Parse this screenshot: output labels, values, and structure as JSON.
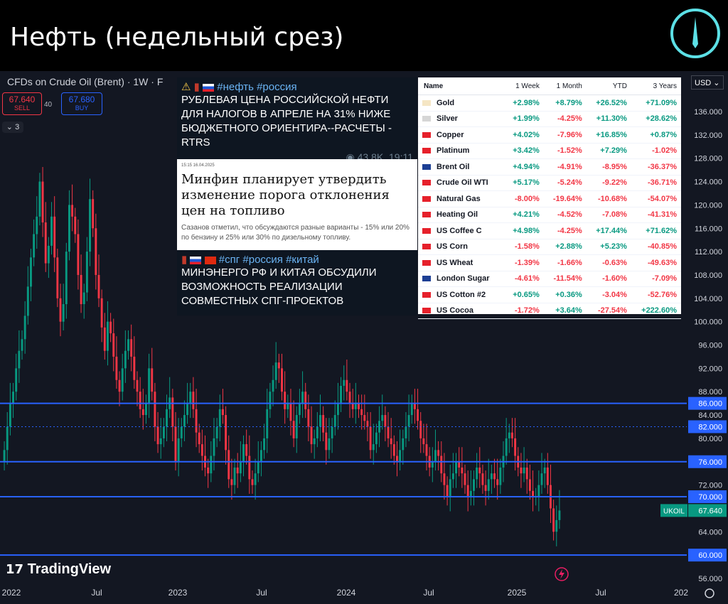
{
  "title": "Нефть (недельный срез)",
  "symbol_title": "CFDs on Crude Oil (Brent) · 1W · F",
  "sell": {
    "price": "67.640",
    "label": "SELL"
  },
  "buy": {
    "price": "67.680",
    "label": "BUY"
  },
  "spread": "40",
  "indicators_count": "3",
  "currency": "USD",
  "brand": "TradingView",
  "news": [
    {
      "tags": "#нефть #россия",
      "text": "РУБЛЕВАЯ ЦЕНА РОССИЙСКОЙ НЕФТИ ДЛЯ НАЛОГОВ В АПРЕЛЕ НА 31% НИЖЕ БЮДЖЕТНОГО ОРИЕНТИРА--РАСЧЕТЫ - RTRS",
      "views": "43.8K",
      "time": "19:11"
    },
    {
      "date": "15:15 16.04.2025",
      "headline": "Минфин планирует утвердить изменение порога отклонения цен на топливо",
      "body": "Сазанов отметил, что обсуждаются разные варианты - 15% или 20% по бензину и 25% или 30% по дизельному топливу."
    },
    {
      "tags": "#спг #россия #китай",
      "text": "МИНЭНЕРГО РФ И КИТАЯ ОБСУДИЛИ ВОЗМОЖНОСТЬ РЕАЛИЗАЦИИ СОВМЕСТНЫХ СПГ-ПРОЕКТОВ"
    }
  ],
  "table": {
    "headers": [
      "Name",
      "1 Week",
      "1 Month",
      "YTD",
      "3 Years"
    ],
    "rows": [
      [
        "Gold",
        "+2.98%",
        "+8.79%",
        "+26.52%",
        "+71.09%"
      ],
      [
        "Silver",
        "+1.99%",
        "-4.25%",
        "+11.30%",
        "+28.62%"
      ],
      [
        "Copper",
        "+4.02%",
        "-7.96%",
        "+16.85%",
        "+0.87%"
      ],
      [
        "Platinum",
        "+3.42%",
        "-1.52%",
        "+7.29%",
        "-1.02%"
      ],
      [
        "Brent Oil",
        "+4.94%",
        "-4.91%",
        "-8.95%",
        "-36.37%"
      ],
      [
        "Crude Oil WTI",
        "+5.17%",
        "-5.24%",
        "-9.22%",
        "-36.71%"
      ],
      [
        "Natural Gas",
        "-8.00%",
        "-19.64%",
        "-10.68%",
        "-54.07%"
      ],
      [
        "Heating Oil",
        "+4.21%",
        "-4.52%",
        "-7.08%",
        "-41.31%"
      ],
      [
        "US Coffee C",
        "+4.98%",
        "-4.25%",
        "+17.44%",
        "+71.62%"
      ],
      [
        "US Corn",
        "-1.58%",
        "+2.88%",
        "+5.23%",
        "-40.85%"
      ],
      [
        "US Wheat",
        "-1.39%",
        "-1.66%",
        "-0.63%",
        "-49.63%"
      ],
      [
        "London Sugar",
        "-4.61%",
        "-11.54%",
        "-1.60%",
        "-7.09%"
      ],
      [
        "US Cotton #2",
        "+0.65%",
        "+0.36%",
        "-3.04%",
        "-52.76%"
      ],
      [
        "US Cocoa",
        "-1.72%",
        "+3.64%",
        "-27.54%",
        "+222.60%"
      ]
    ]
  },
  "chart_data": {
    "type": "line",
    "y_ticks": [
      "136.000",
      "132.000",
      "128.000",
      "124.000",
      "120.000",
      "116.000",
      "112.000",
      "108.000",
      "104.000",
      "100.000",
      "96.000",
      "92.000",
      "88.000",
      "84.000",
      "80.000",
      "76.000",
      "72.000",
      "68.000",
      "64.000",
      "60.000",
      "56.000"
    ],
    "y_values": [
      136,
      132,
      128,
      124,
      120,
      116,
      112,
      108,
      104,
      100,
      96,
      92,
      88,
      84,
      80,
      76,
      72,
      68,
      64,
      60,
      56
    ],
    "x_ticks": [
      "2022",
      "Jul",
      "2023",
      "Jul",
      "2024",
      "Jul",
      "2025",
      "Jul",
      "202"
    ],
    "levels": [
      {
        "value": 86,
        "label": "86.000"
      },
      {
        "value": 82,
        "label": "82.000",
        "style": "dotted"
      },
      {
        "value": 76,
        "label": "76.000"
      },
      {
        "value": 70,
        "label": "70.000"
      },
      {
        "value": 60,
        "label": "60.000"
      }
    ],
    "last_price": {
      "symbol": "UKOIL",
      "value": 67.64,
      "label": "67.640"
    },
    "close_series": [
      78,
      82,
      86,
      88,
      92,
      95,
      97,
      101,
      106,
      111,
      115,
      118,
      124,
      117,
      110,
      113,
      118,
      111,
      104,
      100,
      103,
      112,
      120,
      118,
      115,
      108,
      103,
      105,
      112,
      121,
      116,
      108,
      104,
      99,
      95,
      100,
      98,
      94,
      90,
      88,
      92,
      95,
      97,
      94,
      90,
      88,
      85,
      84,
      86,
      92,
      88,
      82,
      79,
      80,
      82,
      85,
      87,
      82,
      76,
      80,
      82,
      84,
      86,
      88,
      85,
      81,
      79,
      77,
      75,
      74,
      77,
      80,
      82,
      85,
      84,
      78,
      73,
      72,
      75,
      74,
      76,
      79,
      77,
      73,
      72,
      74,
      76,
      78,
      80,
      85,
      88,
      90,
      93,
      92,
      88,
      85,
      86,
      83,
      80,
      84,
      86,
      88,
      85,
      82,
      79,
      80,
      82,
      84,
      81,
      78,
      80,
      82,
      84,
      86,
      89,
      90,
      88,
      86,
      85,
      86,
      85,
      84,
      83,
      82,
      78,
      79,
      81,
      83,
      84,
      82,
      80,
      79,
      77,
      76,
      78,
      80,
      82,
      84,
      86,
      85,
      83,
      80,
      79,
      77,
      75,
      76,
      78,
      77,
      74,
      72,
      70,
      73,
      74,
      76,
      75,
      74,
      72,
      70,
      71,
      73,
      75,
      74,
      72,
      71,
      73,
      74,
      73,
      72,
      75,
      77,
      80,
      81,
      80,
      77,
      75,
      74,
      75,
      73,
      71,
      70,
      70,
      72,
      74,
      75,
      72,
      68,
      64,
      66,
      67.64
    ],
    "colors": {
      "up": "#089981",
      "down": "#f23645",
      "level": "#2962ff"
    }
  }
}
